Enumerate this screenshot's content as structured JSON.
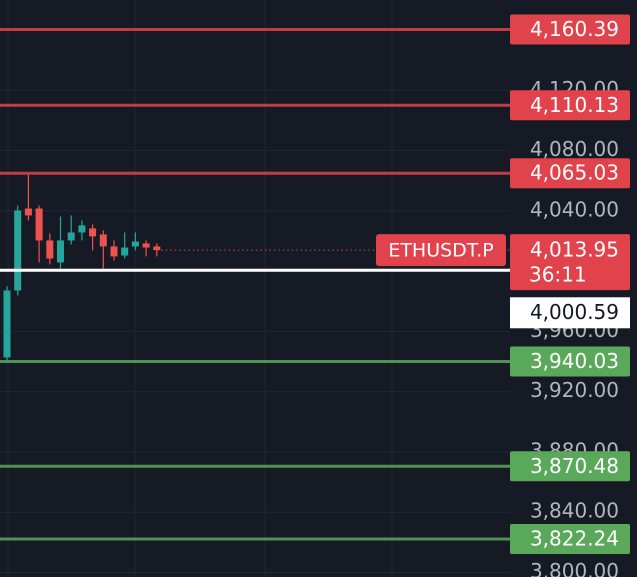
{
  "chart_data": {
    "type": "candlestick",
    "symbol": "ETHUSDT.P",
    "countdown": "36:11",
    "categories": [
      null,
      null,
      null,
      null,
      null,
      null,
      null,
      null,
      null,
      null,
      null,
      null,
      null,
      null,
      null
    ],
    "open": [
      3942.7,
      3987.2,
      4041.6,
      4041.6,
      4020.4,
      4005.8,
      4020.4,
      4025.7,
      4028.4,
      4024.4,
      4016.4,
      4010.4,
      4016.4,
      4018.4,
      4016.4
    ],
    "high": [
      3990.0,
      4043.6,
      4064.2,
      4043.6,
      4025.0,
      4036.3,
      4037.0,
      4033.7,
      4031.0,
      4027.0,
      4020.4,
      4025.7,
      4025.7,
      4020.4,
      4018.4
    ],
    "low": [
      3940.7,
      3983.9,
      4033.7,
      4005.8,
      4004.5,
      4001.8,
      4017.7,
      4020.4,
      4013.8,
      4001.8,
      4007.1,
      4008.4,
      4013.8,
      4009.8,
      4009.8
    ],
    "close": [
      3987.2,
      4040.3,
      4037.0,
      4020.4,
      4008.4,
      4020.4,
      4025.7,
      4030.4,
      4023.1,
      4016.4,
      4009.8,
      4015.7,
      4019.7,
      4015.7,
      4013.95
    ],
    "up_color": "#26a69a",
    "down_color": "#ef5350",
    "ylim": [
      3797,
      4180
    ],
    "yticks": [
      {
        "value": 4120,
        "label": "4,120.00"
      },
      {
        "value": 4080,
        "label": "4,080.00"
      },
      {
        "value": 4040,
        "label": "4,040.00"
      },
      {
        "value": 3960,
        "label": "3,960.00"
      },
      {
        "value": 3920,
        "label": "3,920.00"
      },
      {
        "value": 3880,
        "label": "3,880.00"
      },
      {
        "value": 3840,
        "label": "3,840.00"
      },
      {
        "value": 3800,
        "label": "3,800.00"
      }
    ],
    "grid": true,
    "levels": [
      {
        "value": 4160.39,
        "label": "4,160.39",
        "color": "#e0434b"
      },
      {
        "value": 4110.13,
        "label": "4,110.13",
        "color": "#e0434b"
      },
      {
        "value": 4065.03,
        "label": "4,065.03",
        "color": "#e0434b"
      },
      {
        "value": 3940.03,
        "label": "3,940.03",
        "color": "#5aa95a"
      },
      {
        "value": 3870.48,
        "label": "3,870.48",
        "color": "#5aa95a"
      },
      {
        "value": 3822.24,
        "label": "3,822.24",
        "color": "#5aa95a"
      }
    ],
    "last_price": {
      "value": 4013.95,
      "label": "4,013.95",
      "color": "#e0434b"
    },
    "marker_line": {
      "value": 4000.59,
      "label": "4,000.59",
      "color": "#ffffff"
    }
  }
}
